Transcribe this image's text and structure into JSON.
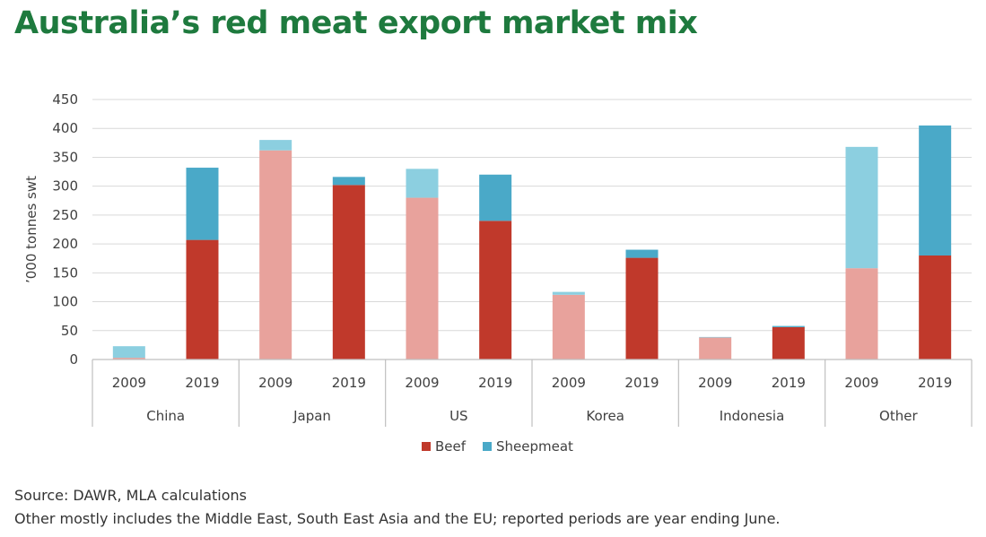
{
  "title": "Australia’s red meat export market mix",
  "footnotes": {
    "source": "Source: DAWR, MLA calculations",
    "note": "Other mostly includes the Middle East, South East Asia and the EU; reported periods are year ending June."
  },
  "colors": {
    "beef_2019": "#c0392b",
    "beef_2009": "#e8a29c",
    "sheep_2019": "#4aa9c8",
    "sheep_2009": "#8ccfe0",
    "legend_beef": "#c0392b",
    "legend_sheep": "#4aa9c8"
  },
  "chart_data": {
    "type": "bar",
    "stacked": true,
    "ylabel": "’000 tonnes swt",
    "ylim": [
      0,
      450
    ],
    "yticks": [
      0,
      50,
      100,
      150,
      200,
      250,
      300,
      350,
      400,
      450
    ],
    "grid": true,
    "legend_position": "bottom",
    "groups": [
      "China",
      "Japan",
      "US",
      "Korea",
      "Indonesia",
      "Other"
    ],
    "years": [
      "2009",
      "2019"
    ],
    "series": [
      {
        "name": "Beef",
        "values": [
          [
            3,
            207
          ],
          [
            362,
            302
          ],
          [
            280,
            240
          ],
          [
            112,
            176
          ],
          [
            38,
            56
          ],
          [
            158,
            180
          ]
        ]
      },
      {
        "name": "Sheepmeat",
        "values": [
          [
            20,
            125
          ],
          [
            18,
            14
          ],
          [
            50,
            80
          ],
          [
            5,
            14
          ],
          [
            1,
            2
          ],
          [
            210,
            225
          ]
        ]
      }
    ]
  }
}
